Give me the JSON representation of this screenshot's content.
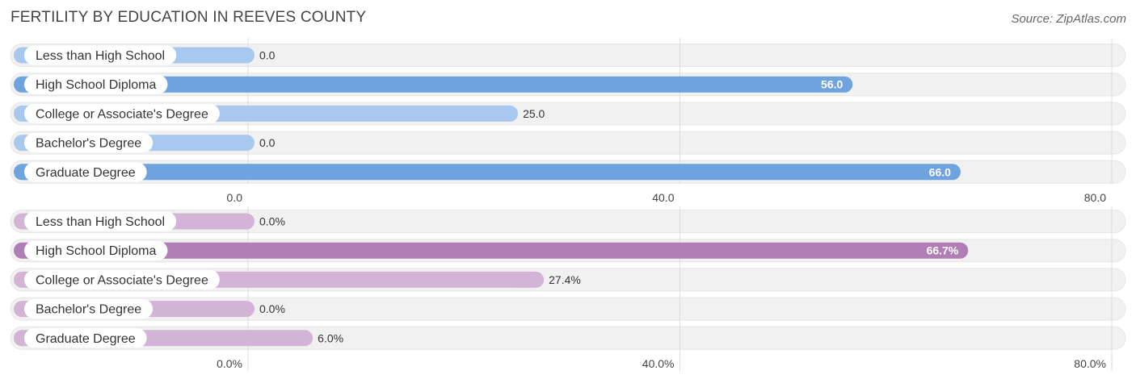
{
  "title": "FERTILITY BY EDUCATION IN REEVES COUNTY",
  "source": "Source: ZipAtlas.com",
  "colors": {
    "blue_strong": "#6ea3de",
    "blue_light": "#a9c8ee",
    "purple_strong": "#b07db4",
    "purple_light": "#d3b3d6",
    "track": "#f1f1f1",
    "grid": "#dddddd"
  },
  "chart_data": [
    {
      "type": "bar",
      "orientation": "horizontal",
      "categories": [
        "Less than High School",
        "High School Diploma",
        "College or Associate's Degree",
        "Bachelor's Degree",
        "Graduate Degree"
      ],
      "values": [
        0.0,
        56.0,
        25.0,
        0.0,
        66.0
      ],
      "value_labels": [
        "0.0",
        "56.0",
        "25.0",
        "0.0",
        "66.0"
      ],
      "xlim": [
        0,
        80
      ],
      "ticks": [
        0,
        40,
        80
      ],
      "tick_labels": [
        "0.0",
        "40.0",
        "80.0"
      ],
      "palette": "blue"
    },
    {
      "type": "bar",
      "orientation": "horizontal",
      "categories": [
        "Less than High School",
        "High School Diploma",
        "College or Associate's Degree",
        "Bachelor's Degree",
        "Graduate Degree"
      ],
      "values": [
        0.0,
        66.7,
        27.4,
        0.0,
        6.0
      ],
      "value_labels": [
        "0.0%",
        "66.7%",
        "27.4%",
        "0.0%",
        "6.0%"
      ],
      "xlim": [
        0,
        80
      ],
      "ticks": [
        0,
        40,
        80
      ],
      "tick_labels": [
        "0.0%",
        "40.0%",
        "80.0%"
      ],
      "palette": "purple"
    }
  ]
}
